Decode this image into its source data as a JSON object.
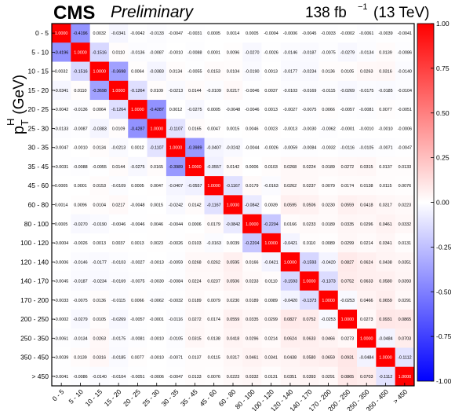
{
  "header": {
    "experiment": "CMS",
    "status": "Preliminary",
    "luminosity": "138 fb",
    "lumi_exponent": "−1",
    "energy": "(13 TeV)"
  },
  "chart_data": {
    "type": "heatmap",
    "ylabel": "p_T^H (GeV)",
    "ylabel_main": "p",
    "ylabel_sub": "T",
    "ylabel_sup": "H",
    "ylabel_units": "(GeV)",
    "categories": [
      "0 - 5",
      "5 - 10",
      "10 - 15",
      "15 - 20",
      "20 - 25",
      "25 - 30",
      "30 - 35",
      "35 - 45",
      "45 - 60",
      "60 - 80",
      "80 - 100",
      "100 - 120",
      "120 - 140",
      "140 - 170",
      "170 - 200",
      "200 - 250",
      "250 - 350",
      "350 - 450",
      "> 450"
    ],
    "colorbar": {
      "min": -1.0,
      "max": 1.0,
      "ticks": [
        1.0,
        0.75,
        0.5,
        0.25,
        0.0,
        -0.25,
        -0.5,
        -0.75,
        -1.0
      ],
      "tick_labels": [
        "1.00",
        "0.75",
        "0.50",
        "0.25",
        "0.00",
        "-0.25",
        "-0.50",
        "-0.75",
        "-1.00"
      ]
    },
    "matrix": [
      [
        1.0,
        -0.4196,
        0.0032,
        -0.0341,
        -0.0042,
        -0.0133,
        -0.0047,
        -0.0031,
        0.0005,
        0.0014,
        0.0005,
        -0.0004,
        -0.0006,
        -0.0045,
        -0.0033,
        -0.0002,
        -0.0061,
        -0.0039,
        -0.0041
      ],
      [
        -0.4196,
        1.0,
        -0.1516,
        0.011,
        -0.0136,
        -0.0087,
        -0.001,
        -0.0088,
        0.0001,
        0.0096,
        -0.027,
        -0.0026,
        -0.0146,
        -0.0187,
        -0.0075,
        -0.0279,
        -0.0134,
        0.0139,
        -0.0086
      ],
      [
        0.0032,
        -0.1516,
        1.0,
        -0.3698,
        0.0064,
        -0.0383,
        0.0134,
        -0.0055,
        0.0153,
        0.0104,
        -0.019,
        0.0013,
        -0.0177,
        -0.0234,
        0.0136,
        0.0105,
        0.0263,
        0.0316,
        -0.014
      ],
      [
        -0.0341,
        0.011,
        -0.3698,
        1.0,
        -0.1264,
        0.0109,
        -0.0213,
        0.0144,
        -0.0109,
        0.0217,
        -0.0046,
        0.0037,
        -0.0103,
        -0.0169,
        -0.0115,
        -0.0269,
        -0.0175,
        -0.0185,
        -0.0104
      ],
      [
        -0.0042,
        -0.0136,
        0.0064,
        -0.1264,
        1.0,
        -0.4287,
        0.0012,
        -0.0275,
        0.0005,
        -0.0048,
        -0.0046,
        0.0013,
        -0.0027,
        -0.0075,
        0.0066,
        -0.0057,
        -0.0081,
        0.0077,
        -0.0051
      ],
      [
        -0.0133,
        -0.0087,
        -0.0383,
        0.0109,
        -0.4287,
        1.0,
        -0.1107,
        0.0165,
        0.0047,
        0.0015,
        0.0046,
        0.0023,
        -0.0013,
        -0.003,
        -0.0062,
        -0.0001,
        -0.001,
        -0.001,
        -0.0006
      ],
      [
        -0.0047,
        -0.001,
        0.0134,
        -0.0213,
        0.0012,
        -0.1107,
        1.0,
        -0.3989,
        -0.0407,
        -0.0242,
        -0.0044,
        -0.0026,
        -0.0059,
        -0.0084,
        -0.0032,
        -0.0116,
        -0.0105,
        -0.0071,
        -0.0047
      ],
      [
        -0.0031,
        -0.0088,
        -0.0055,
        0.0144,
        -0.0275,
        0.0165,
        -0.3989,
        1.0,
        -0.0557,
        0.0142,
        0.0006,
        0.0103,
        0.0268,
        0.0224,
        0.0189,
        0.0272,
        0.0315,
        0.0137,
        0.0133
      ],
      [
        0.0005,
        0.0001,
        0.0153,
        -0.0109,
        0.0005,
        0.0047,
        -0.0407,
        -0.0557,
        1.0,
        -0.1167,
        0.0179,
        -0.0163,
        0.0262,
        0.0237,
        0.0079,
        0.0174,
        0.0138,
        0.0115,
        0.0076
      ],
      [
        0.0014,
        0.0096,
        0.0104,
        0.0217,
        -0.0048,
        0.0015,
        -0.0242,
        0.0142,
        -0.1167,
        1.0,
        -0.0842,
        0.0039,
        0.0595,
        0.0506,
        0.023,
        0.0559,
        0.0418,
        0.0317,
        0.0223
      ],
      [
        0.0005,
        -0.027,
        -0.019,
        -0.0046,
        -0.0046,
        0.0046,
        -0.0044,
        0.0006,
        0.0179,
        -0.0842,
        1.0,
        -0.2204,
        0.0166,
        0.0233,
        0.0189,
        0.0335,
        0.0296,
        0.0461,
        0.0332
      ],
      [
        -0.0004,
        -0.0026,
        0.0013,
        0.0037,
        0.0013,
        0.0023,
        -0.0026,
        0.0103,
        -0.0163,
        0.0039,
        -0.2204,
        1.0,
        -0.0421,
        0.011,
        0.0089,
        0.0299,
        0.0214,
        0.0341,
        0.0131
      ],
      [
        -0.0006,
        -0.0146,
        -0.0177,
        -0.0103,
        -0.0027,
        -0.0013,
        -0.0059,
        0.0268,
        0.0262,
        0.0595,
        0.0166,
        -0.0421,
        1.0,
        -0.1593,
        -0.042,
        0.0827,
        0.0624,
        0.0438,
        0.0351
      ],
      [
        -0.0045,
        -0.0187,
        -0.0234,
        -0.0169,
        -0.0075,
        -0.003,
        -0.0084,
        0.0224,
        0.0237,
        0.0506,
        0.0233,
        0.011,
        -0.1593,
        1.0,
        -0.1373,
        0.0752,
        0.0633,
        0.058,
        0.0393
      ],
      [
        -0.0033,
        -0.0075,
        0.0136,
        -0.0115,
        0.0066,
        -0.0062,
        -0.0032,
        0.0189,
        0.0079,
        0.023,
        0.0189,
        0.0089,
        -0.042,
        -0.1373,
        1.0,
        -0.0253,
        0.0466,
        0.0659,
        0.0291
      ],
      [
        -0.0002,
        -0.0279,
        0.0105,
        -0.0269,
        -0.0057,
        -0.0001,
        -0.0116,
        0.0272,
        0.0174,
        0.0559,
        0.0335,
        0.0299,
        0.0827,
        0.0752,
        -0.0253,
        1.0,
        0.0273,
        0.0931,
        0.0865
      ],
      [
        -0.0061,
        -0.0134,
        0.0263,
        -0.0175,
        -0.0081,
        -0.001,
        -0.0105,
        0.0315,
        0.0138,
        0.0418,
        0.0296,
        0.0214,
        0.0624,
        0.0633,
        0.0466,
        0.0273,
        1.0,
        -0.0484,
        0.0703
      ],
      [
        -0.0039,
        0.0139,
        0.0316,
        -0.0185,
        0.0077,
        -0.001,
        -0.0071,
        0.0137,
        0.0115,
        0.0317,
        0.0461,
        0.0341,
        0.0438,
        0.058,
        0.0659,
        0.0931,
        -0.0484,
        1.0,
        -0.1112
      ],
      [
        -0.0041,
        -0.0086,
        -0.014,
        -0.0104,
        -0.0051,
        -0.0006,
        -0.0047,
        0.0133,
        0.0076,
        0.0223,
        0.0332,
        0.0131,
        0.0351,
        0.0393,
        0.0291,
        0.0865,
        0.0703,
        -0.1112,
        1.0
      ]
    ]
  }
}
